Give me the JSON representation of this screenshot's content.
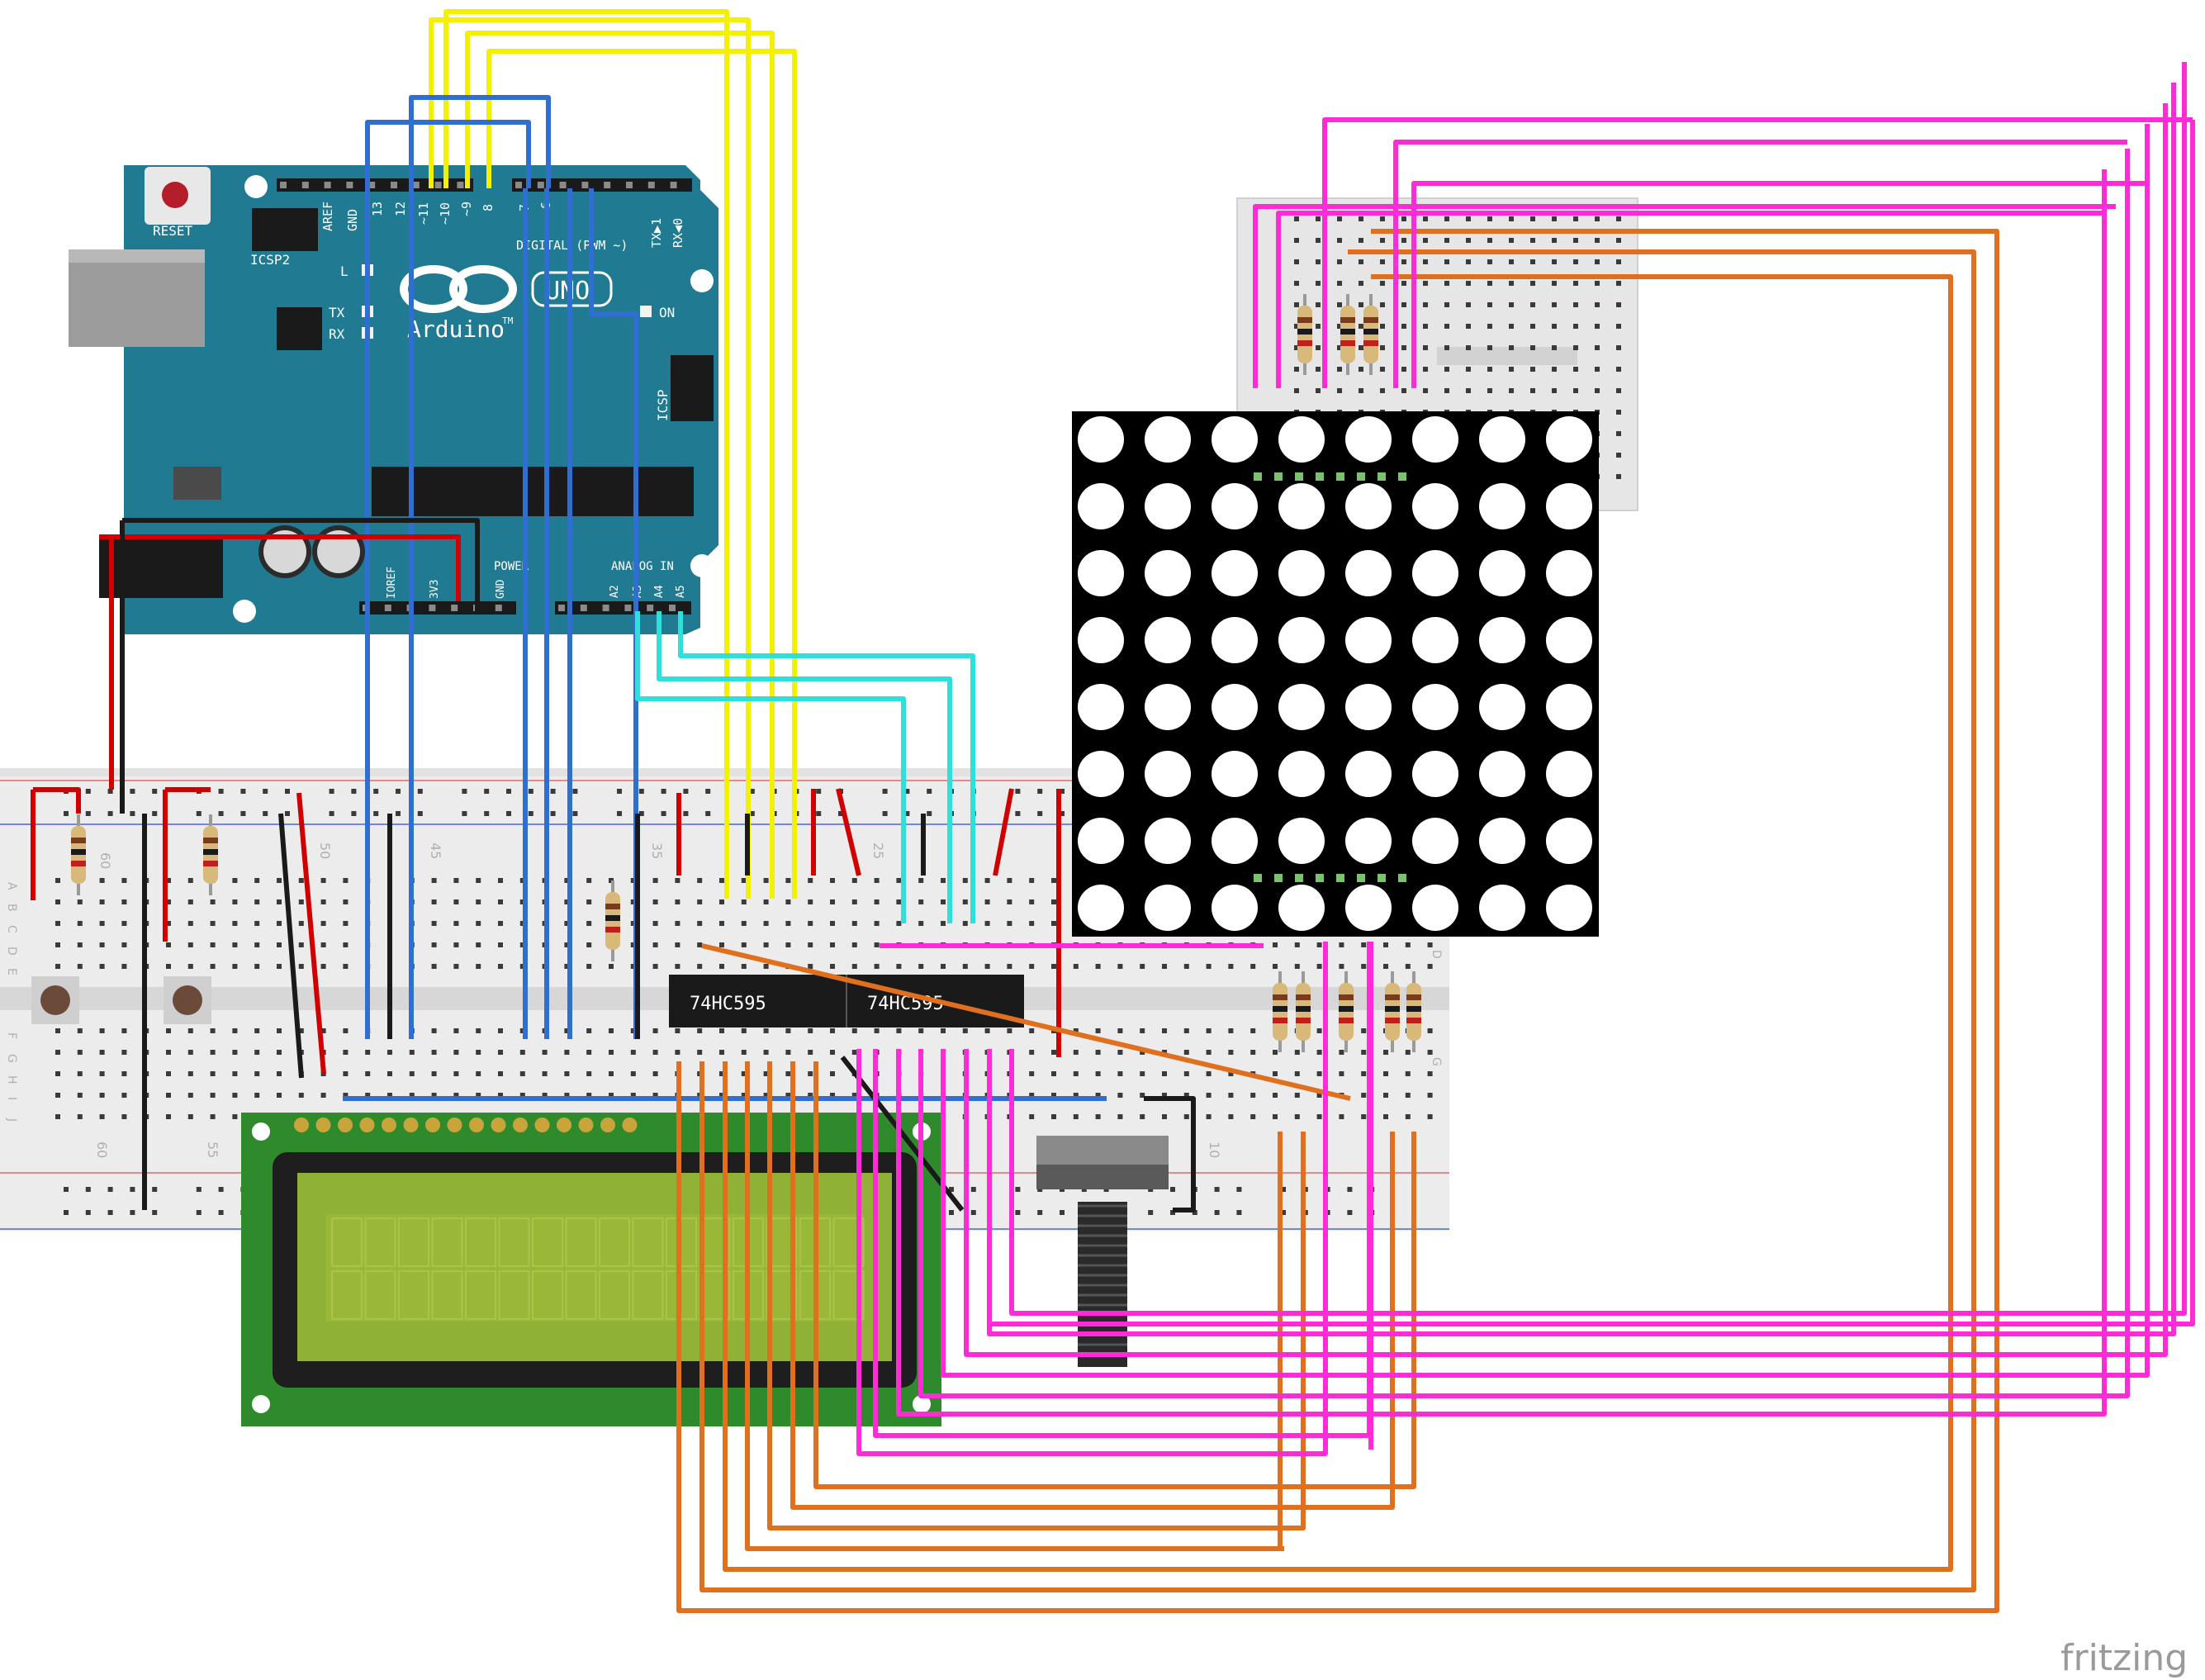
{
  "arduino": {
    "reset_label": "RESET",
    "icsp2_label": "ICSP2",
    "icsp_label": "ICSP",
    "brand": "Arduino",
    "tm": "TM",
    "uno_logo": "UNO",
    "digital_label": "DIGITAL (PWM ~)",
    "header_labels": [
      "AREF",
      "GND",
      "13",
      "12",
      "~11",
      "~10",
      "~9",
      "8",
      "7",
      "~6",
      "TX▶1",
      "RX◀0"
    ],
    "led_labels": [
      "L",
      "TX",
      "RX",
      "ON"
    ],
    "power_label": "POWER",
    "power_pins": [
      "IOREF",
      "3V3",
      "GND"
    ],
    "analog_label": "ANALOG IN",
    "analog_pins": [
      "A2",
      "A3",
      "A4",
      "A5"
    ]
  },
  "breadboard": {
    "column_numbers": [
      "60",
      "55",
      "50",
      "45",
      "35",
      "25",
      "10"
    ],
    "row_letters_top": [
      "A",
      "B",
      "C",
      "D",
      "E"
    ],
    "row_letters_bottom": [
      "F",
      "G",
      "H",
      "I",
      "J"
    ]
  },
  "chips": [
    "74HC595",
    "74HC595"
  ],
  "watermark": "fritzing",
  "colors": {
    "pcb": "#1f7a92",
    "wire_yellow": "#f5f000",
    "wire_blue": "#2e6fd1",
    "wire_cyan": "#2de0dc",
    "wire_magenta": "#ff2bd6",
    "wire_orange": "#e0701e",
    "wire_red": "#d00000",
    "wire_black": "#1a1a1a",
    "lcd_screen": "#9ab838",
    "lcd_board": "#2f8a2c",
    "matrix_body": "#000000"
  }
}
